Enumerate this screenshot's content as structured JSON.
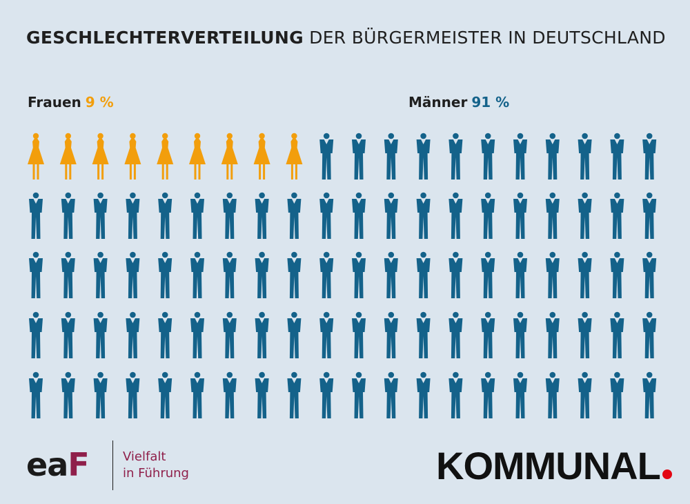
{
  "title_bold": "GESCHLECHTERVERTEILUNG",
  "title_rest": "DER BÜRGERMEISTER IN DEUTSCHLAND",
  "legend": {
    "women_label": "Frauen",
    "women_pct": "9 %",
    "men_label": "Männer",
    "men_pct": "91 %"
  },
  "colors": {
    "women": "#f29e0c",
    "men": "#14628a",
    "background": "#dbe5ee"
  },
  "chart_data": {
    "type": "pictogram",
    "total_icons": 100,
    "series": [
      {
        "name": "Frauen",
        "value": 9,
        "icon": "woman-icon",
        "color": "#f29e0c"
      },
      {
        "name": "Männer",
        "value": 91,
        "icon": "man-icon",
        "color": "#14628a"
      }
    ]
  },
  "footer": {
    "eaf_logo_text": "eaf",
    "eaf_tagline_1": "Vielfalt",
    "eaf_tagline_2": "in Führung",
    "kommunal_logo": "KOMMUNAL"
  }
}
